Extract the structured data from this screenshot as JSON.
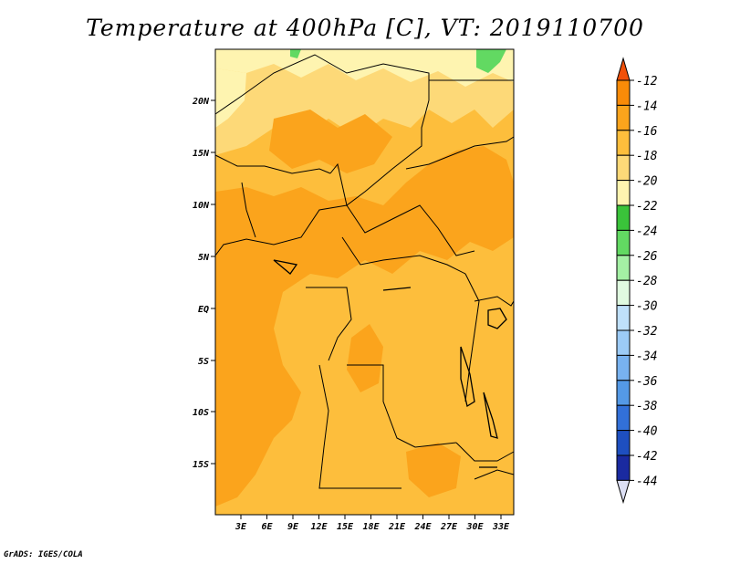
{
  "title": "Temperature at 400hPa [C], VT: 2019110700",
  "credit": "GrADS: IGES/COLA",
  "map": {
    "lat_labels": [
      "20N",
      "15N",
      "10N",
      "5N",
      "EQ",
      "5S",
      "10S",
      "15S"
    ],
    "lon_labels": [
      "3E",
      "6E",
      "9E",
      "12E",
      "15E",
      "18E",
      "21E",
      "24E",
      "27E",
      "30E",
      "33E"
    ]
  },
  "colorbar": {
    "labels": [
      "-12",
      "-14",
      "-16",
      "-18",
      "-20",
      "-22",
      "-24",
      "-26",
      "-28",
      "-30",
      "-32",
      "-34",
      "-36",
      "-38",
      "-40",
      "-42",
      "-44"
    ],
    "colors": [
      "#f0500a",
      "#f98b08",
      "#fba41c",
      "#fdbe3c",
      "#fdd978",
      "#fef4b0",
      "#3ac33a",
      "#62d962",
      "#a4f0a4",
      "#e0fae0",
      "#bfe0fa",
      "#9ccbf6",
      "#78b2f0",
      "#5499e6",
      "#3270d8",
      "#1e4fc0",
      "#1a2aa0",
      "#0e0a70"
    ],
    "top_color": "#f0500a",
    "bottom_color": "#dde0f5"
  },
  "palette": {
    "land_base": "#fdbe3c",
    "warm": "#fba41c",
    "cool": "#fdd978",
    "coolest": "#fef4b0",
    "green": "#62d962"
  }
}
